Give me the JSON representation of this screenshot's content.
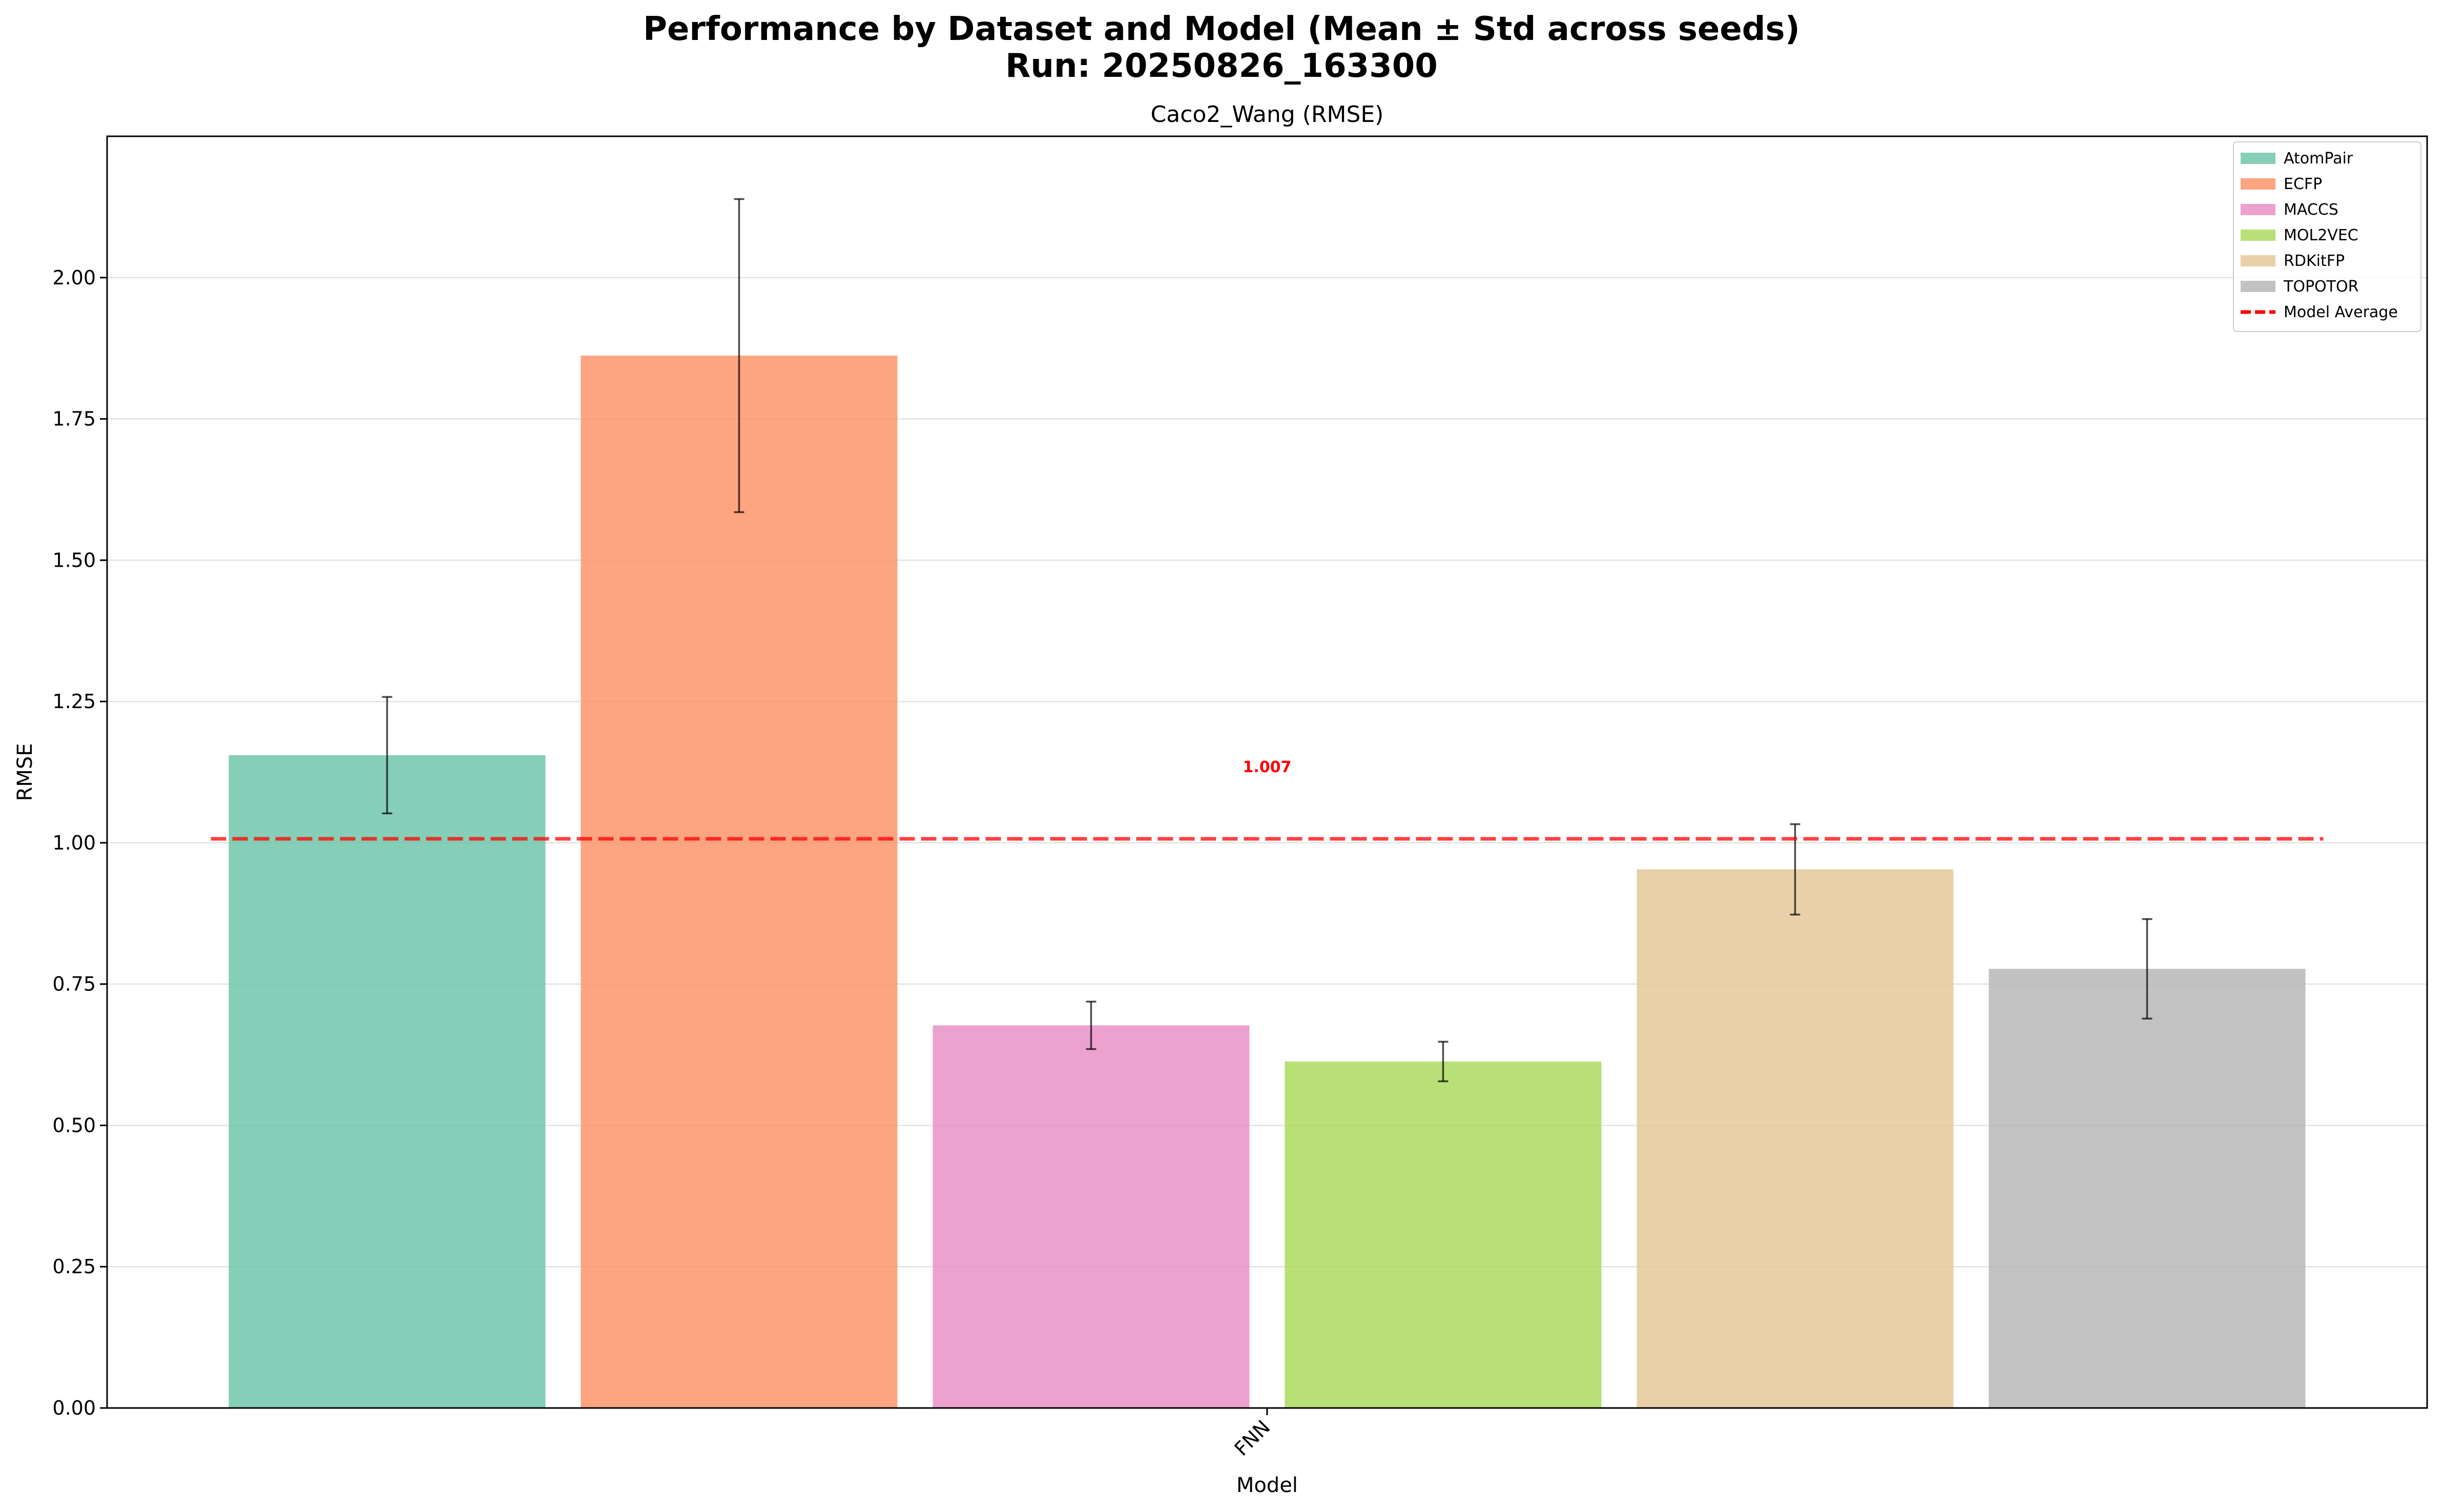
{
  "chart_data": {
    "type": "bar",
    "title": "Performance by Dataset and Model (Mean ± Std across seeds)",
    "subtitle": "Run: 20250826_163300",
    "axes_title": "Caco2_Wang (RMSE)",
    "xlabel": "Model",
    "ylabel": "RMSE",
    "categories": [
      "FNN"
    ],
    "ylim": [
      0,
      2.25
    ],
    "yticks": [
      "0.00",
      "0.25",
      "0.50",
      "0.75",
      "1.00",
      "1.25",
      "1.50",
      "1.75",
      "2.00"
    ],
    "grid": "horizontal",
    "legend_position": "top-right",
    "series": [
      {
        "name": "AtomPair",
        "values": [
          1.155
        ],
        "std": [
          0.103
        ],
        "color": "#66c2a5"
      },
      {
        "name": "ECFP",
        "values": [
          1.862
        ],
        "std": [
          0.277
        ],
        "color": "#fc8d62"
      },
      {
        "name": "MACCS",
        "values": [
          0.677
        ],
        "std": [
          0.042
        ],
        "color": "#e78ac3"
      },
      {
        "name": "MOL2VEC",
        "values": [
          0.613
        ],
        "std": [
          0.035
        ],
        "color": "#a6d854"
      },
      {
        "name": "RDKitFP",
        "values": [
          0.953
        ],
        "std": [
          0.08
        ],
        "color": "#e5c494"
      },
      {
        "name": "TOPOTOR",
        "values": [
          0.777
        ],
        "std": [
          0.088
        ],
        "color": "#b3b3b3"
      }
    ],
    "average_line": {
      "name": "Model Average",
      "value": 1.007,
      "label": "1.007",
      "color": "#ff0000"
    }
  }
}
